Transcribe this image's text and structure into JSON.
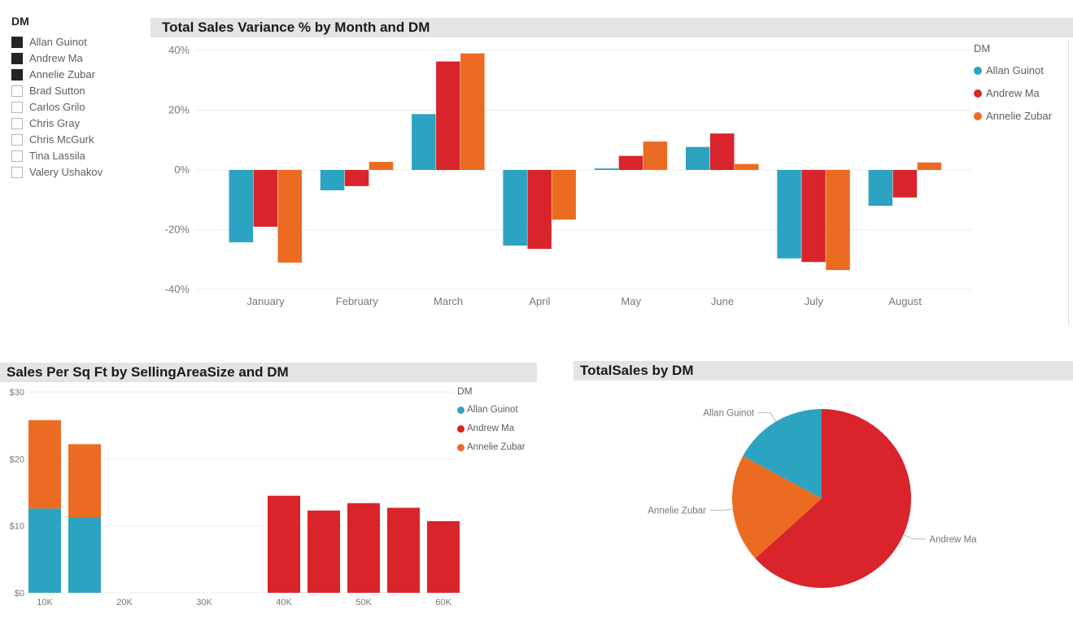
{
  "palette": {
    "teal": "#2CA3C0",
    "red": "#D9242B",
    "orange": "#EA6B21",
    "title_bar_bg": "#E4E4E4",
    "title_text": "#1A1A1A",
    "axis_text": "#777777",
    "grid_line": "#ECECEC",
    "legend_text": "#605E5C",
    "checkbox_checked": "#252423",
    "leader_line": "#B9B9B9"
  },
  "slicer": {
    "title": "DM",
    "items": [
      {
        "label": "Allan Guinot",
        "checked": true
      },
      {
        "label": "Andrew Ma",
        "checked": true
      },
      {
        "label": "Annelie Zubar",
        "checked": true
      },
      {
        "label": "Brad Sutton",
        "checked": false
      },
      {
        "label": "Carlos Grilo",
        "checked": false
      },
      {
        "label": "Chris Gray",
        "checked": false
      },
      {
        "label": "Chris McGurk",
        "checked": false
      },
      {
        "label": "Tina Lassila",
        "checked": false
      },
      {
        "label": "Valery Ushakov",
        "checked": false
      }
    ]
  },
  "chart_data": [
    {
      "id": "variance",
      "type": "bar",
      "title": "Total Sales Variance % by Month and DM",
      "categories": [
        "January",
        "February",
        "March",
        "April",
        "May",
        "June",
        "July",
        "August"
      ],
      "series": [
        {
          "name": "Allan Guinot",
          "color": "#2CA3C0",
          "values": [
            -24.2,
            -6.8,
            18.7,
            -25.3,
            0.5,
            7.7,
            -29.6,
            -12.0
          ]
        },
        {
          "name": "Andrew Ma",
          "color": "#D9242B",
          "values": [
            -19.0,
            -5.4,
            36.3,
            -26.4,
            4.7,
            12.2,
            -30.8,
            -9.2
          ]
        },
        {
          "name": "Annelie Zubar",
          "color": "#EA6B21",
          "values": [
            -31.0,
            2.7,
            39.0,
            -16.6,
            9.5,
            2.0,
            -33.5,
            2.5
          ]
        }
      ],
      "ylim": [
        -40,
        40
      ],
      "yticks": [
        {
          "value": 40,
          "label": "40%"
        },
        {
          "value": 20,
          "label": "20%"
        },
        {
          "value": 0,
          "label": "0%"
        },
        {
          "value": -20,
          "label": "-20%"
        },
        {
          "value": -40,
          "label": "-40%"
        }
      ],
      "grid": true,
      "legend_position": "right",
      "legend_title": "DM",
      "legend_entries": [
        {
          "label": "Allan Guinot",
          "color": "#2CA3C0"
        },
        {
          "label": "Andrew Ma",
          "color": "#D9242B"
        },
        {
          "label": "Annelie Zubar",
          "color": "#EA6B21"
        }
      ]
    },
    {
      "id": "sales_per_sqft",
      "type": "bar",
      "title": "Sales Per Sq Ft by SellingAreaSize and DM",
      "x_axis": "SellingAreaSize",
      "xticks": [
        {
          "value": 10000,
          "label": "10K"
        },
        {
          "value": 20000,
          "label": "20K"
        },
        {
          "value": 30000,
          "label": "30K"
        },
        {
          "value": 40000,
          "label": "40K"
        },
        {
          "value": 50000,
          "label": "50K"
        },
        {
          "value": 60000,
          "label": "60K"
        }
      ],
      "ylim": [
        0,
        30
      ],
      "yticks": [
        {
          "value": 30,
          "label": "$30"
        },
        {
          "value": 20,
          "label": "$20"
        },
        {
          "value": 10,
          "label": "$10"
        },
        {
          "value": 0,
          "label": "$0"
        }
      ],
      "bars": [
        {
          "x": 10000,
          "segments": [
            {
              "name": "Allan Guinot",
              "color": "#2CA3C0",
              "value": 12.6
            },
            {
              "name": "Annelie Zubar",
              "color": "#EA6B21",
              "value": 13.2
            }
          ]
        },
        {
          "x": 15000,
          "segments": [
            {
              "name": "Allan Guinot",
              "color": "#2CA3C0",
              "value": 11.3
            },
            {
              "name": "Annelie Zubar",
              "color": "#EA6B21",
              "value": 10.9
            }
          ]
        },
        {
          "x": 40000,
          "segments": [
            {
              "name": "Andrew Ma",
              "color": "#D9242B",
              "value": 14.5
            }
          ]
        },
        {
          "x": 45000,
          "segments": [
            {
              "name": "Andrew Ma",
              "color": "#D9242B",
              "value": 12.3
            }
          ]
        },
        {
          "x": 50000,
          "segments": [
            {
              "name": "Andrew Ma",
              "color": "#D9242B",
              "value": 13.4
            }
          ]
        },
        {
          "x": 55000,
          "segments": [
            {
              "name": "Andrew Ma",
              "color": "#D9242B",
              "value": 12.7
            }
          ]
        },
        {
          "x": 60000,
          "segments": [
            {
              "name": "Andrew Ma",
              "color": "#D9242B",
              "value": 10.7
            }
          ]
        }
      ],
      "grid": true,
      "legend_position": "right",
      "legend_title": "DM",
      "legend_entries": [
        {
          "label": "Allan Guinot",
          "color": "#2CA3C0"
        },
        {
          "label": "Andrew Ma",
          "color": "#D9242B"
        },
        {
          "label": "Annelie Zubar",
          "color": "#EA6B21"
        }
      ]
    },
    {
      "id": "total_sales_pie",
      "type": "pie",
      "title": "TotalSales by DM",
      "start_angle_deg": 0,
      "clockwise": true,
      "slices": [
        {
          "name": "Andrew Ma",
          "percent": 63.3,
          "color": "#D9242B"
        },
        {
          "name": "Annelie Zubar",
          "percent": 19.6,
          "color": "#EA6B21"
        },
        {
          "name": "Allan Guinot",
          "percent": 17.1,
          "color": "#2CA3C0"
        }
      ]
    }
  ]
}
